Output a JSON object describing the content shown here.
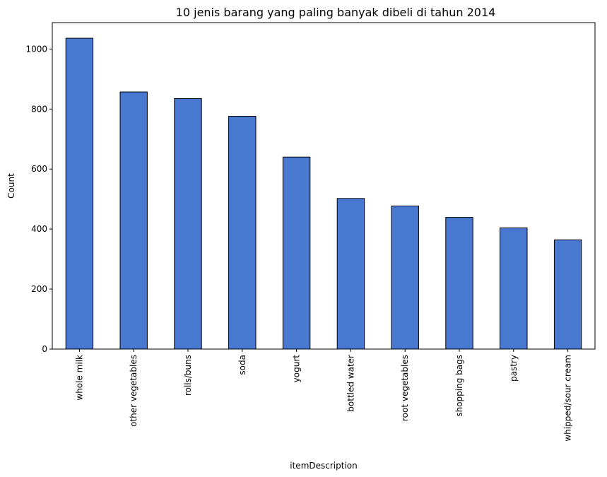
{
  "chart_data": {
    "type": "bar",
    "title": "10 jenis barang yang paling banyak dibeli di tahun 2014",
    "xlabel": "itemDescription",
    "ylabel": "Count",
    "categories": [
      "whole milk",
      "other vegetables",
      "rolls/buns",
      "soda",
      "yogurt",
      "bottled water",
      "root vegetables",
      "shopping bags",
      "pastry",
      "whipped/sour cream"
    ],
    "values": [
      1036,
      857,
      835,
      776,
      640,
      502,
      477,
      439,
      404,
      364
    ],
    "ylim": [
      0,
      1088
    ],
    "yticks": [
      0,
      200,
      400,
      600,
      800,
      1000
    ],
    "grid": false,
    "legend": "none",
    "colors": {
      "bar": "#4878CF",
      "edge": "#000000"
    }
  }
}
